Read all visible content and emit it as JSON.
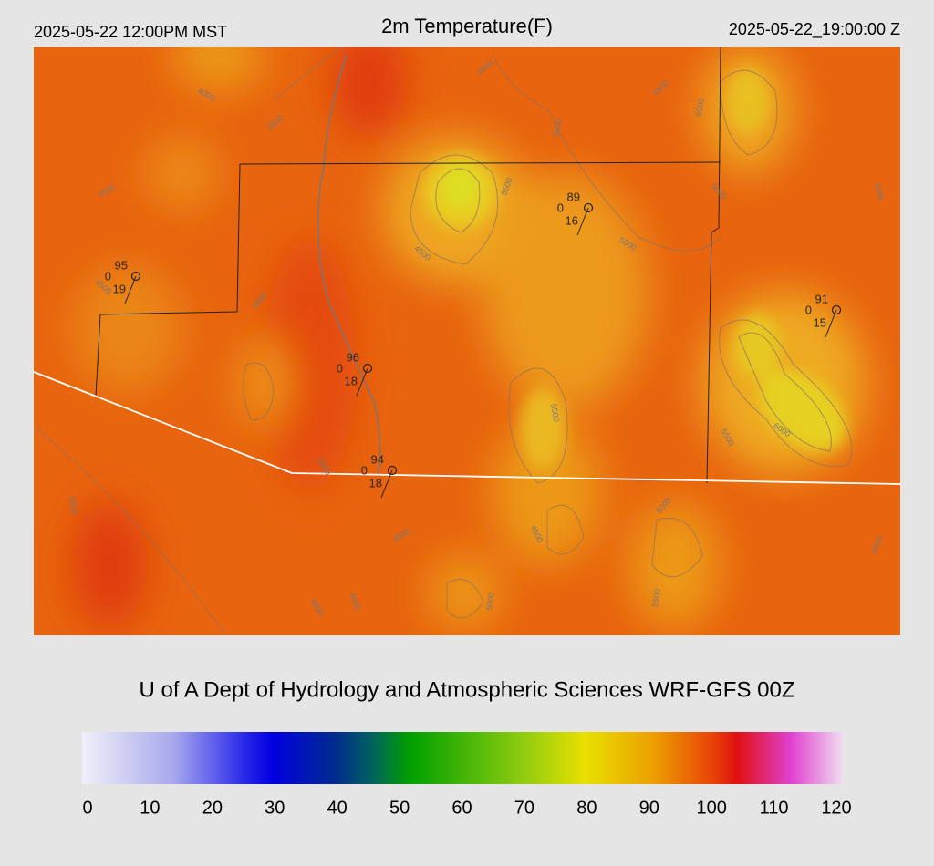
{
  "header": {
    "local_time": "2025-05-22 12:00PM MST",
    "title": "2m Temperature(F)",
    "utc_time": "2025-05-22_19:00:00 Z"
  },
  "stations": [
    {
      "temperature": 95,
      "wind": 0,
      "dewpoint": 19
    },
    {
      "temperature": 96,
      "wind": 0,
      "dewpoint": 18
    },
    {
      "temperature": 94,
      "wind": 0,
      "dewpoint": 18
    },
    {
      "temperature": 89,
      "wind": 0,
      "dewpoint": 16
    },
    {
      "temperature": 91,
      "wind": 0,
      "dewpoint": 15
    }
  ],
  "contour_labels": [
    "4000",
    "3500",
    "3500",
    "4500",
    "4500",
    "4500",
    "5500",
    "5000",
    "4000",
    "4500",
    "5000",
    "5000",
    "5000",
    "4000",
    "5500",
    "5500",
    "6000",
    "4500",
    "5500",
    "4500",
    "4500",
    "5000",
    "4500",
    "4500",
    "4000",
    "5000",
    "5500"
  ],
  "footer": {
    "credit": "U of A Dept of Hydrology and Atmospheric Sciences WRF-GFS 00Z"
  },
  "colorbar": {
    "ticks": [
      0,
      10,
      20,
      30,
      40,
      50,
      60,
      70,
      80,
      90,
      100,
      110,
      120
    ]
  }
}
